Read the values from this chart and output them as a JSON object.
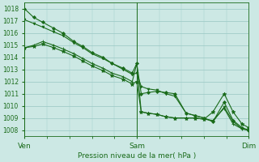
{
  "title": "Pression niveau de la mer( hPa )",
  "background_color": "#cce8e4",
  "grid_color": "#a0ccc8",
  "line_color": "#1a6b1a",
  "ylim": [
    1007.5,
    1018.5
  ],
  "yticks": [
    1008,
    1009,
    1010,
    1011,
    1012,
    1013,
    1014,
    1015,
    1016,
    1017,
    1018
  ],
  "xtick_labels": [
    "Ven",
    "Sam",
    "Dim"
  ],
  "xtick_positions": [
    0.0,
    0.5,
    1.0
  ],
  "vlines": [
    0.0,
    0.5,
    1.0
  ],
  "series": [
    {
      "x": [
        0.0,
        0.04,
        0.08,
        0.13,
        0.17,
        0.22,
        0.26,
        0.3,
        0.35,
        0.39,
        0.44,
        0.48,
        0.5,
        0.52,
        0.55,
        0.59,
        0.63,
        0.67,
        0.72,
        0.76,
        0.8,
        0.84,
        0.89,
        0.93,
        0.97,
        1.0
      ],
      "y": [
        1018.0,
        1017.3,
        1016.9,
        1016.4,
        1016.0,
        1015.3,
        1014.9,
        1014.4,
        1014.0,
        1013.5,
        1013.1,
        1012.7,
        1013.5,
        1011.0,
        1011.1,
        1011.2,
        1011.1,
        1011.0,
        1009.4,
        1009.2,
        1009.0,
        1008.7,
        1010.3,
        1008.8,
        1008.2,
        1008.0
      ],
      "marker": "D",
      "markersize": 2.0,
      "linewidth": 0.8
    },
    {
      "x": [
        0.0,
        0.04,
        0.08,
        0.13,
        0.17,
        0.22,
        0.26,
        0.3,
        0.35,
        0.39,
        0.44,
        0.48,
        0.5,
        0.52,
        0.55,
        0.59,
        0.63,
        0.67,
        0.72,
        0.76,
        0.8,
        0.84,
        0.89,
        0.93,
        0.97,
        1.0
      ],
      "y": [
        1017.1,
        1016.8,
        1016.5,
        1016.1,
        1015.8,
        1015.2,
        1014.8,
        1014.3,
        1013.9,
        1013.5,
        1013.0,
        1012.6,
        1012.7,
        1011.6,
        1011.4,
        1011.3,
        1011.0,
        1010.8,
        1009.4,
        1009.2,
        1009.0,
        1008.7,
        1009.9,
        1008.7,
        1008.1,
        1008.0
      ],
      "marker": "v",
      "markersize": 2.0,
      "linewidth": 0.8
    },
    {
      "x": [
        0.0,
        0.04,
        0.08,
        0.13,
        0.17,
        0.22,
        0.26,
        0.3,
        0.35,
        0.39,
        0.44,
        0.48,
        0.5,
        0.52,
        0.55,
        0.59,
        0.63,
        0.67,
        0.72,
        0.76,
        0.8,
        0.84,
        0.89,
        0.93,
        0.97,
        1.0
      ],
      "y": [
        1014.8,
        1015.0,
        1015.3,
        1015.0,
        1014.7,
        1014.3,
        1013.9,
        1013.5,
        1013.1,
        1012.7,
        1012.4,
        1012.0,
        1013.5,
        1009.5,
        1009.4,
        1009.3,
        1009.1,
        1009.0,
        1009.0,
        1009.0,
        1008.9,
        1008.8,
        1009.8,
        1008.5,
        1008.1,
        1008.0
      ],
      "marker": "+",
      "markersize": 3.5,
      "linewidth": 0.8
    },
    {
      "x": [
        0.0,
        0.04,
        0.08,
        0.13,
        0.17,
        0.22,
        0.26,
        0.3,
        0.35,
        0.39,
        0.44,
        0.48,
        0.5,
        0.52,
        0.55,
        0.59,
        0.63,
        0.67,
        0.72,
        0.76,
        0.8,
        0.84,
        0.89,
        0.93,
        0.97,
        1.0
      ],
      "y": [
        1014.8,
        1014.9,
        1015.1,
        1014.8,
        1014.5,
        1014.1,
        1013.7,
        1013.3,
        1012.9,
        1012.5,
        1012.2,
        1011.8,
        1012.0,
        1009.5,
        1009.4,
        1009.3,
        1009.1,
        1009.0,
        1009.0,
        1009.0,
        1008.9,
        1009.5,
        1011.0,
        1009.5,
        1008.5,
        1008.2
      ],
      "marker": "*",
      "markersize": 3.5,
      "linewidth": 0.8
    }
  ]
}
